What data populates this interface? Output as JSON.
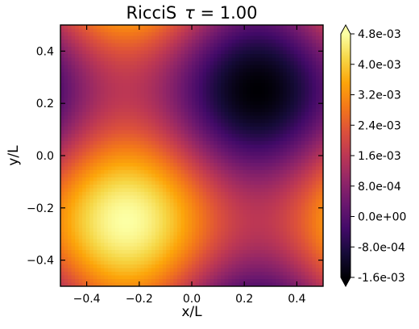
{
  "chart_data": {
    "type": "heatmap",
    "title_prefix": "RicciS",
    "title_symbol": "τ",
    "title_suffix": " = 1.00",
    "xlabel": "x/L",
    "ylabel": "y/L",
    "xlim": [
      -0.5,
      0.5
    ],
    "ylim": [
      -0.5,
      0.5
    ],
    "xticks": [
      "−0.4",
      "−0.2",
      "0.0",
      "0.2",
      "0.4"
    ],
    "xtick_values": [
      -0.4,
      -0.2,
      0.0,
      0.2,
      0.4
    ],
    "yticks": [
      "−0.4",
      "−0.2",
      "0.0",
      "0.2",
      "0.4"
    ],
    "ytick_values": [
      -0.4,
      -0.2,
      0.0,
      0.2,
      0.4
    ],
    "colormap": "inferno",
    "colorbar": {
      "min": -0.0016,
      "max": 0.0048,
      "extend": "both",
      "ticks": [
        "4.8e-03",
        "4.0e-03",
        "3.2e-03",
        "2.4e-03",
        "1.6e-03",
        "8.0e-04",
        "0.0e+00",
        "-8.0e-04",
        "-1.6e-03"
      ],
      "tick_values": [
        0.0048,
        0.004,
        0.0032,
        0.0024,
        0.0016,
        0.0008,
        0.0,
        -0.0008,
        -0.0016
      ]
    },
    "field": {
      "description_values": "max ≈ 4.8e-03 near (-0.25,-0.25); min ≈ -1.6e-03 near (0.25,0.25); saddle ≈ 1.6e-03 near (-0.25,0.25) and (0.25,-0.25)",
      "extrema": [
        {
          "x": -0.25,
          "y": -0.25,
          "value": 0.0048
        },
        {
          "x": 0.25,
          "y": 0.25,
          "value": -0.0016
        },
        {
          "x": -0.25,
          "y": 0.25,
          "value": 0.0016
        },
        {
          "x": 0.25,
          "y": -0.25,
          "value": 0.0016
        }
      ],
      "mean": 0.0016,
      "amp_sin": 0.0016,
      "amp_sin2": 0.0016
    }
  }
}
